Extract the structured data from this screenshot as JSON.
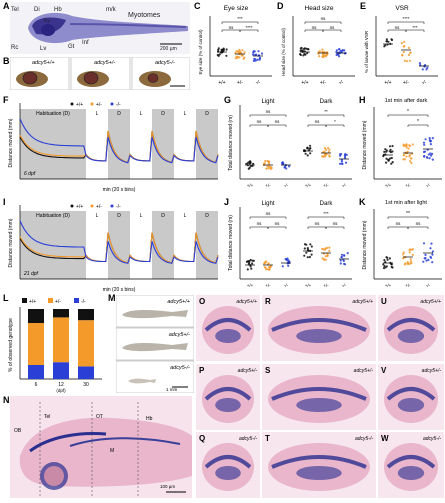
{
  "panels": {
    "A": {
      "label": "A",
      "annotations": [
        "Tel",
        "Di",
        "Hb",
        "Rc",
        "Lv",
        "Ey",
        "Gt",
        "Inf",
        "Myotomes",
        "m/k",
        "200 µm"
      ]
    },
    "B": {
      "label": "B",
      "genotypes": [
        "adcy5+/+",
        "adcy5+/-",
        "adcy5-/-"
      ],
      "scale": "200 µm"
    },
    "C": {
      "label": "C",
      "title": "Eye size",
      "ylabel": "Eye size (% of control)",
      "xcats": [
        "+/+",
        "+/-",
        "-/-"
      ],
      "sig": [
        "ns",
        "ns",
        "****",
        "***"
      ]
    },
    "D": {
      "label": "D",
      "title": "Head size",
      "ylabel": "Head size (% of control)",
      "xcats": [
        "+/+",
        "+/-",
        "-/-"
      ],
      "sig": [
        "ns",
        "ns",
        "ns"
      ]
    },
    "E": {
      "label": "E",
      "title": "VSR",
      "ylabel": "% of larvae with VSR",
      "xcats": [
        "+/+",
        "+/-",
        "-/-"
      ],
      "sig": [
        "****",
        "ns",
        "***"
      ]
    },
    "F": {
      "label": "F",
      "ylabel": "Distance moved (mm)",
      "xlabel": "min (20 s bins)",
      "legend": [
        "+/+",
        "+/-",
        "-/-"
      ],
      "conditions": [
        "Habituation (D)",
        "L",
        "D",
        "L",
        "D",
        "L",
        "D"
      ],
      "age": "6 dpf"
    },
    "G": {
      "label": "G",
      "ylabel": "Total distance moved (m)",
      "groups": [
        "Light",
        "Dark"
      ],
      "xcats": [
        "+/+",
        "+/-",
        "-/-"
      ],
      "sig": [
        "ns",
        "ns",
        "ns",
        "ns",
        "*",
        "**"
      ]
    },
    "H": {
      "label": "H",
      "title": "1st min after dark",
      "ylabel": "Distance moved (mm)",
      "xcats": [
        "+/+",
        "+/-",
        "-/-"
      ],
      "sig": [
        "*",
        "*"
      ]
    },
    "I": {
      "label": "I",
      "ylabel": "Distance moved (mm)",
      "xlabel": "min (20 s bins)",
      "legend": [
        "+/+",
        "+/-",
        "-/-"
      ],
      "conditions": [
        "Habituation (D)",
        "L",
        "D",
        "L",
        "D",
        "L",
        "D"
      ],
      "age": "21 dpf"
    },
    "J": {
      "label": "J",
      "ylabel": "Total distance moved (m)",
      "groups": [
        "Light",
        "Dark"
      ],
      "xcats": [
        "+/+",
        "+/-",
        "-/-"
      ],
      "sig": [
        "ns",
        "ns",
        "ns",
        "ns",
        "ns",
        "***"
      ]
    },
    "K": {
      "label": "K",
      "title": "1st min after light",
      "ylabel": "Distance moved (mm)",
      "xcats": [
        "+/+",
        "+/-",
        "-/-"
      ],
      "sig": [
        "**",
        "ns",
        "ns"
      ]
    },
    "L": {
      "label": "L",
      "ylabel": "% of observed genotype",
      "legend": [
        "+/+",
        "+/-",
        "-/-"
      ],
      "xcats": [
        "6",
        "12",
        "30"
      ],
      "xlabel": "(dpf)"
    },
    "M": {
      "label": "M",
      "genotypes": [
        "adcy5+/+",
        "adcy5+/-",
        "adcy5-/-"
      ],
      "scale": "1 mm"
    },
    "N": {
      "label": "N",
      "annotations": [
        "OB",
        "Tel",
        "OT",
        "Hb",
        "M"
      ],
      "scale": "100 µm"
    },
    "O": {
      "label": "O",
      "genotype": "adcy5+/+"
    },
    "P": {
      "label": "P",
      "genotype": "adcy5+/-"
    },
    "Q": {
      "label": "Q",
      "genotype": "adcy5-/-"
    },
    "R": {
      "label": "R",
      "genotype": "adcy5+/+"
    },
    "S": {
      "label": "S",
      "genotype": "adcy5+/-"
    },
    "T": {
      "label": "T",
      "genotype": "adcy5-/-"
    },
    "U": {
      "label": "U",
      "genotype": "adcy5+/+"
    },
    "V": {
      "label": "V",
      "genotype": "adcy5+/-"
    },
    "W": {
      "label": "W",
      "genotype": "adcy5-/-"
    }
  },
  "colors": {
    "wt": "#111111",
    "het": "#f39a2b",
    "ko": "#2a3fd6",
    "stain": "#2a2f8f",
    "tissue": "#e9b6cc"
  },
  "chart_data": [
    {
      "panel": "F",
      "type": "line",
      "x_range": [
        0,
        180
      ],
      "conditions": [
        "Habituation (D)",
        "L",
        "D",
        "L",
        "D",
        "L",
        "D"
      ],
      "series": [
        {
          "name": "+/+"
        },
        {
          "name": "+/-"
        },
        {
          "name": "-/-"
        }
      ]
    },
    {
      "panel": "I",
      "type": "line",
      "x_range": [
        0,
        180
      ],
      "conditions": [
        "Habituation (D)",
        "L",
        "D",
        "L",
        "D",
        "L",
        "D"
      ],
      "series": [
        {
          "name": "+/+"
        },
        {
          "name": "+/-"
        },
        {
          "name": "-/-"
        }
      ]
    },
    {
      "panel": "L",
      "type": "bar",
      "stacked": true,
      "categories": [
        "6",
        "12",
        "30"
      ],
      "series": [
        {
          "name": "+/+",
          "values": [
            20,
            12,
            16
          ]
        },
        {
          "name": "+/-",
          "values": [
            60,
            64,
            66
          ]
        },
        {
          "name": "-/-",
          "values": [
            20,
            24,
            18
          ]
        }
      ],
      "ylim": [
        0,
        100
      ]
    }
  ]
}
